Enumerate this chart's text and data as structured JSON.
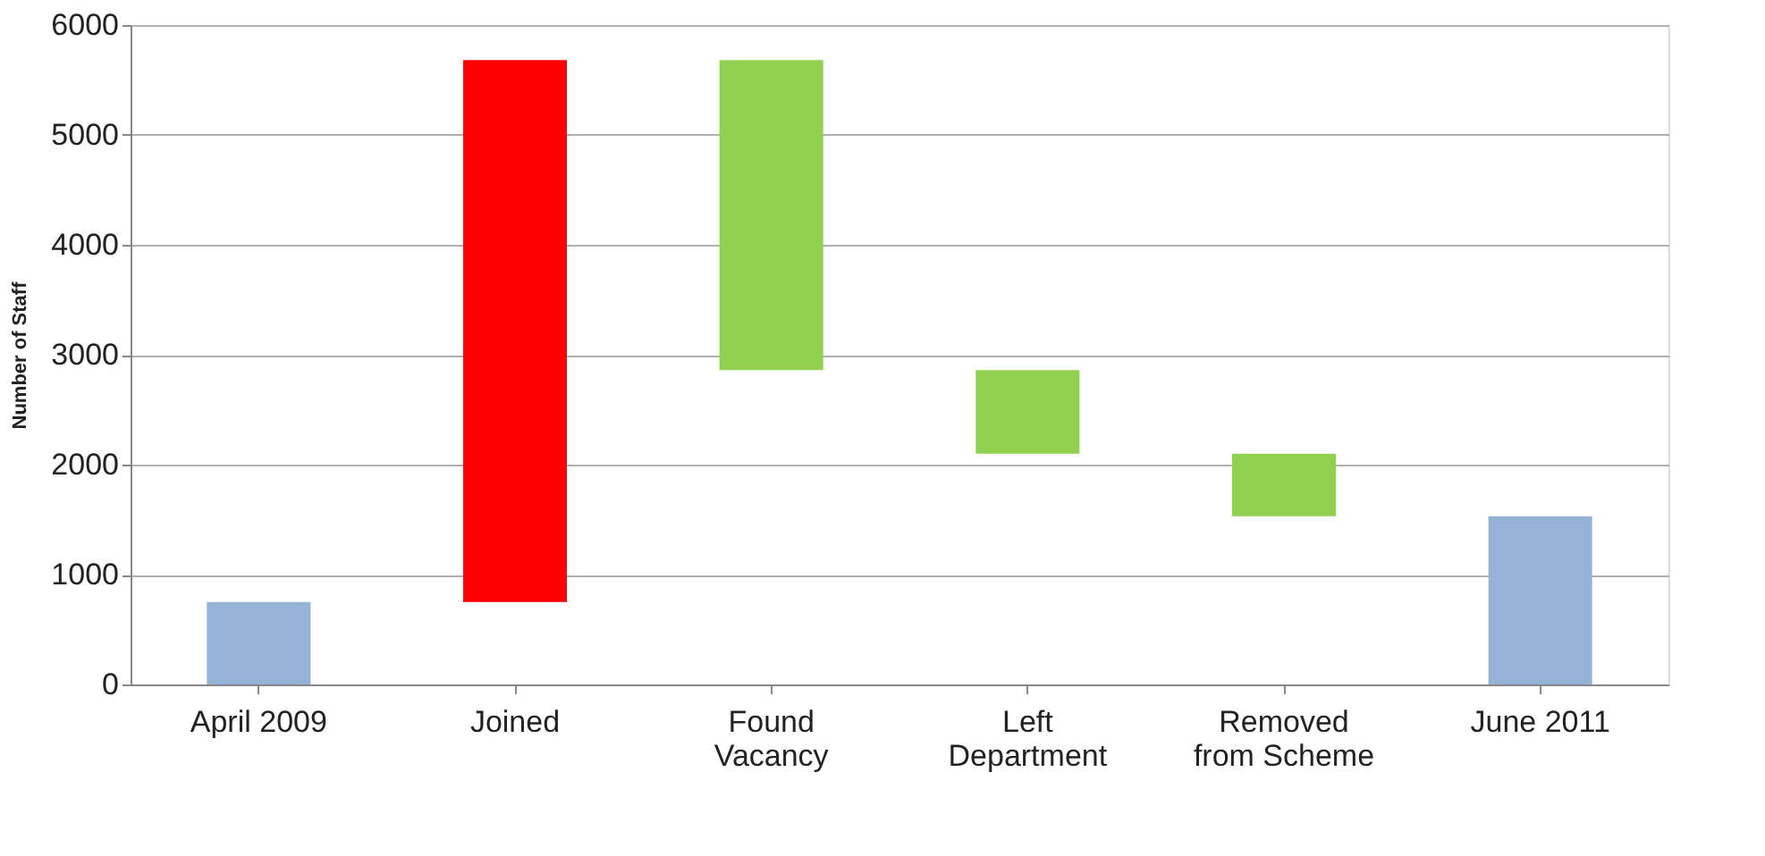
{
  "chart_data": {
    "type": "bar",
    "ylabel": "Number of Staff",
    "categories": [
      "April 2009",
      "Joined",
      "Found\nVacancy",
      "Left\nDepartment",
      "Removed\nfrom Scheme",
      "June 2011"
    ],
    "values": [
      750,
      4930,
      2820,
      760,
      570,
      1530
    ],
    "base": [
      0,
      750,
      2860,
      2100,
      1530,
      0
    ],
    "colors": [
      "#95b3d7",
      "#ff0000",
      "#92d050",
      "#92d050",
      "#92d050",
      "#95b3d7"
    ],
    "ylim": [
      0,
      6000
    ],
    "yticks": [
      0,
      1000,
      2000,
      3000,
      4000,
      5000,
      6000
    ],
    "grid": "y"
  }
}
